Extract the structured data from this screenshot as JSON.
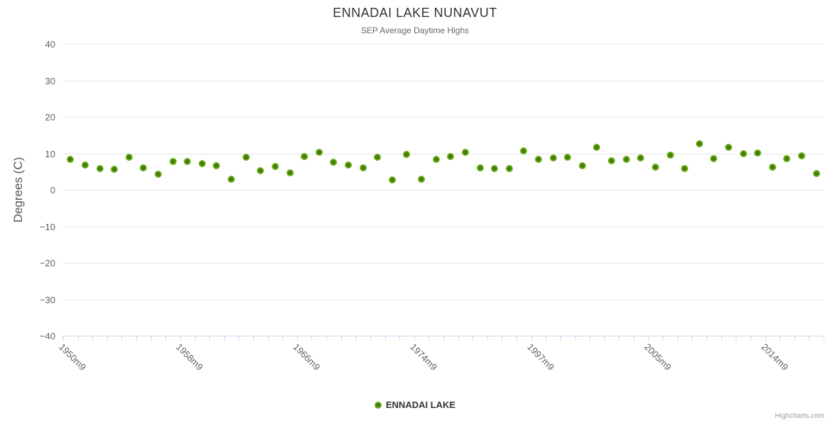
{
  "header": {
    "title": "ENNADAI LAKE NUNAVUT",
    "subtitle": "SEP Average Daytime Highs"
  },
  "legend": {
    "items": [
      {
        "label": "ENNADAI LAKE",
        "marker_icon": "circle-marker-icon"
      }
    ]
  },
  "credit": {
    "label": "Highcharts.com"
  },
  "colors": {
    "marker_outer": "#6fb31c",
    "marker_inner": "#3e7a05",
    "gridline": "#e6e6e6",
    "axis_line": "#ccd6eb",
    "title_text": "#333333",
    "subtitle_text": "#666666",
    "axis_label_text": "#606060",
    "credit_text": "#999999"
  },
  "chart_data": {
    "type": "scatter",
    "title": "ENNADAI LAKE NUNAVUT",
    "subtitle": "SEP Average Daytime Highs",
    "xlabel": "",
    "ylabel": "Degrees (C)",
    "ylim": [
      -40,
      40
    ],
    "y_ticks": [
      40,
      30,
      20,
      10,
      0,
      -10,
      -20,
      -30,
      -40
    ],
    "grid": true,
    "legend_position": "bottom-center",
    "x_axis_labels": [
      {
        "index": 0,
        "label": "1950m9"
      },
      {
        "index": 8,
        "label": "1958m9"
      },
      {
        "index": 16,
        "label": "1966m9"
      },
      {
        "index": 24,
        "label": "1974m9"
      },
      {
        "index": 32,
        "label": "1997m9"
      },
      {
        "index": 40,
        "label": "2005m9"
      },
      {
        "index": 48,
        "label": "2014m9"
      }
    ],
    "series": [
      {
        "name": "ENNADAI LAKE",
        "values": [
          8.4,
          6.7,
          5.9,
          5.7,
          8.9,
          6.1,
          4.3,
          7.8,
          7.7,
          7.2,
          6.6,
          3.0,
          9.0,
          5.2,
          6.4,
          4.6,
          9.2,
          10.2,
          7.6,
          6.8,
          6.0,
          8.9,
          2.7,
          9.7,
          2.9,
          8.3,
          9.2,
          10.3,
          6.1,
          5.8,
          5.8,
          10.6,
          8.3,
          8.8,
          8.9,
          6.6,
          11.7,
          8.0,
          8.3,
          8.7,
          6.3,
          9.6,
          5.9,
          12.7,
          8.5,
          11.6,
          10.0,
          10.1,
          6.2,
          8.5,
          9.3,
          4.4
        ]
      }
    ]
  }
}
